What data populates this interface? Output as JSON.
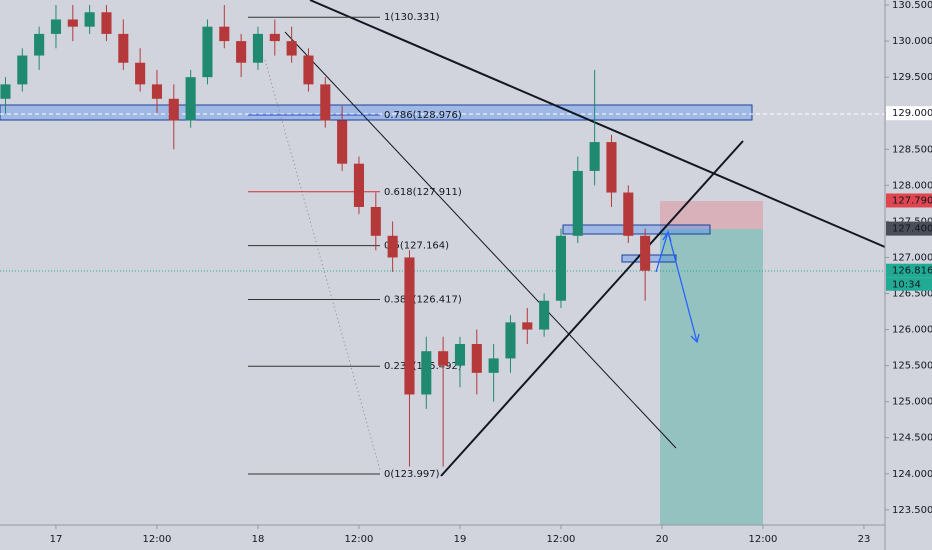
{
  "chart_data": {
    "type": "candlestick",
    "x": [
      -6,
      -4,
      -2,
      0,
      2,
      4,
      6,
      8,
      10,
      12,
      14,
      16,
      18,
      20,
      22,
      24,
      26,
      28,
      30,
      32,
      34,
      36,
      38,
      40,
      42,
      44,
      46,
      48,
      50,
      52,
      54,
      56,
      58,
      60,
      62,
      64,
      66,
      68,
      70
    ],
    "open": [
      129.2,
      129.4,
      129.8,
      130.1,
      130.3,
      130.2,
      130.4,
      130.1,
      129.7,
      129.4,
      129.2,
      128.9,
      129.5,
      130.2,
      130.0,
      129.7,
      130.1,
      130.0,
      129.8,
      129.4,
      128.9,
      128.3,
      127.7,
      127.3,
      127.0,
      125.1,
      125.7,
      125.5,
      125.8,
      125.4,
      125.6,
      126.1,
      126.0,
      126.4,
      127.3,
      128.2,
      128.6,
      127.9,
      127.3
    ],
    "high": [
      129.5,
      129.9,
      130.2,
      130.5,
      130.5,
      130.5,
      130.5,
      130.3,
      129.9,
      129.6,
      129.4,
      129.6,
      130.3,
      130.5,
      130.1,
      130.2,
      130.3,
      130.2,
      129.9,
      129.5,
      129.1,
      128.4,
      127.9,
      127.5,
      127.1,
      125.9,
      125.9,
      125.9,
      126.0,
      125.8,
      126.2,
      126.3,
      126.5,
      127.4,
      128.4,
      129.6,
      128.7,
      128.0,
      127.4
    ],
    "low": [
      129.0,
      129.3,
      129.6,
      129.9,
      130.0,
      130.1,
      130.0,
      129.6,
      129.3,
      129.0,
      128.5,
      128.8,
      129.4,
      129.9,
      129.5,
      129.6,
      129.8,
      129.7,
      129.3,
      128.8,
      128.2,
      127.6,
      127.1,
      126.8,
      124.1,
      124.9,
      124.1,
      125.2,
      125.1,
      125.0,
      125.4,
      125.8,
      125.9,
      126.3,
      127.2,
      128.0,
      127.7,
      127.2,
      126.4
    ],
    "close": [
      129.4,
      129.8,
      130.1,
      130.3,
      130.2,
      130.4,
      130.1,
      129.7,
      129.4,
      129.2,
      128.9,
      129.5,
      130.2,
      130.0,
      129.7,
      130.1,
      130.0,
      129.8,
      129.4,
      128.9,
      128.3,
      127.7,
      127.3,
      127.0,
      125.1,
      125.7,
      125.5,
      125.8,
      125.4,
      125.6,
      126.1,
      126.0,
      126.4,
      127.3,
      128.2,
      128.6,
      127.9,
      127.3,
      126.816
    ],
    "up_color": "#1f8a70",
    "down_color": "#b5393a",
    "xlim": [
      -6.65,
      98.5
    ],
    "ylim": [
      123.29,
      130.57
    ],
    "xticks": [
      {
        "value": 0,
        "label": "17"
      },
      {
        "value": 12,
        "label": "12:00"
      },
      {
        "value": 24,
        "label": "18"
      },
      {
        "value": 36,
        "label": "12:00"
      },
      {
        "value": 48,
        "label": "19"
      },
      {
        "value": 60,
        "label": "12:00"
      },
      {
        "value": 72,
        "label": "20"
      },
      {
        "value": 84,
        "label": "12:00"
      },
      {
        "value": 96,
        "label": "23"
      }
    ],
    "yticks": [
      {
        "value": 123.5,
        "label": "123.500"
      },
      {
        "value": 124,
        "label": "124.000"
      },
      {
        "value": 124.5,
        "label": "124.500"
      },
      {
        "value": 125,
        "label": "125.000"
      },
      {
        "value": 125.5,
        "label": "125.500"
      },
      {
        "value": 126,
        "label": "126.000"
      },
      {
        "value": 126.5,
        "label": "126.500"
      },
      {
        "value": 127,
        "label": "127.000"
      },
      {
        "value": 127.5,
        "label": "127.500"
      },
      {
        "value": 128,
        "label": "128.000"
      },
      {
        "value": 128.5,
        "label": "128.500"
      },
      {
        "value": 129,
        "label": "129.000"
      },
      {
        "value": 129.5,
        "label": "129.500"
      },
      {
        "value": 130,
        "label": "130.000"
      },
      {
        "value": 130.5,
        "label": "130.500"
      }
    ],
    "fib": [
      {
        "value": 130.331,
        "label": "1(130.331)",
        "color": "#333333"
      },
      {
        "value": 128.976,
        "label": "0.786(128.976)",
        "color": "#2848c8"
      },
      {
        "value": 127.911,
        "label": "0.618(127.911)",
        "color": "#d03030"
      },
      {
        "value": 127.164,
        "label": "0.5(127.164)",
        "color": "#333333"
      },
      {
        "value": 126.417,
        "label": "0.382(126.417)",
        "color": "#333333"
      },
      {
        "value": 125.492,
        "label": "0.236(125.492)",
        "color": "#333333"
      },
      {
        "value": 123.997,
        "label": "0(123.997)",
        "color": "#333333"
      }
    ],
    "price_labels": [
      {
        "value": 129.0,
        "label": "129.000",
        "color": "#ffffff",
        "text_color": "#131722"
      },
      {
        "value": 127.79,
        "label": "127.790",
        "color": "#e0464f",
        "text_color": "#ffffff"
      },
      {
        "value": 127.4,
        "label": "127.400",
        "color": "#4a4e59",
        "text_color": "#ffffff"
      },
      {
        "value": 126.816,
        "label": "126.816",
        "color": "#22ab94",
        "text_color": "#ffffff"
      }
    ],
    "countdown": "10:34"
  }
}
